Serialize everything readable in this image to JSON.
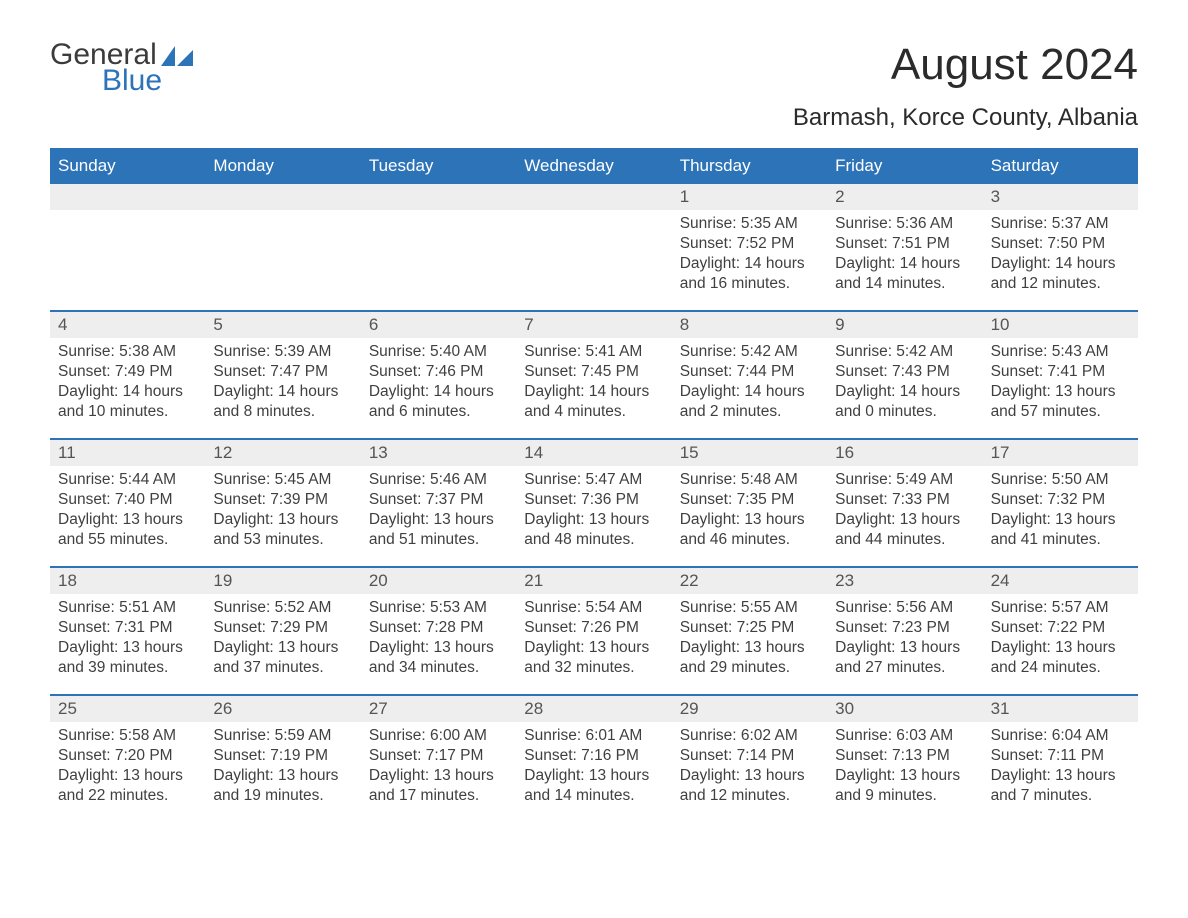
{
  "logo": {
    "general": "General",
    "blue": "Blue",
    "flag_color": "#2d73b8"
  },
  "title": "August 2024",
  "location": "Barmash, Korce County, Albania",
  "colors": {
    "header_bg": "#2d73b8",
    "header_text": "#ffffff",
    "daynum_bg": "#eeeeee",
    "body_text": "#404040",
    "rule": "#2d73b8",
    "page_bg": "#ffffff"
  },
  "typography": {
    "title_fontsize": 44,
    "location_fontsize": 24,
    "header_fontsize": 17,
    "daynum_fontsize": 17,
    "body_fontsize": 15.5,
    "font_family": "Arial"
  },
  "calendar": {
    "type": "table",
    "columns": [
      "Sunday",
      "Monday",
      "Tuesday",
      "Wednesday",
      "Thursday",
      "Friday",
      "Saturday"
    ],
    "weeks": [
      [
        null,
        null,
        null,
        null,
        {
          "day": "1",
          "sunrise": "Sunrise: 5:35 AM",
          "sunset": "Sunset: 7:52 PM",
          "daylight": "Daylight: 14 hours and 16 minutes."
        },
        {
          "day": "2",
          "sunrise": "Sunrise: 5:36 AM",
          "sunset": "Sunset: 7:51 PM",
          "daylight": "Daylight: 14 hours and 14 minutes."
        },
        {
          "day": "3",
          "sunrise": "Sunrise: 5:37 AM",
          "sunset": "Sunset: 7:50 PM",
          "daylight": "Daylight: 14 hours and 12 minutes."
        }
      ],
      [
        {
          "day": "4",
          "sunrise": "Sunrise: 5:38 AM",
          "sunset": "Sunset: 7:49 PM",
          "daylight": "Daylight: 14 hours and 10 minutes."
        },
        {
          "day": "5",
          "sunrise": "Sunrise: 5:39 AM",
          "sunset": "Sunset: 7:47 PM",
          "daylight": "Daylight: 14 hours and 8 minutes."
        },
        {
          "day": "6",
          "sunrise": "Sunrise: 5:40 AM",
          "sunset": "Sunset: 7:46 PM",
          "daylight": "Daylight: 14 hours and 6 minutes."
        },
        {
          "day": "7",
          "sunrise": "Sunrise: 5:41 AM",
          "sunset": "Sunset: 7:45 PM",
          "daylight": "Daylight: 14 hours and 4 minutes."
        },
        {
          "day": "8",
          "sunrise": "Sunrise: 5:42 AM",
          "sunset": "Sunset: 7:44 PM",
          "daylight": "Daylight: 14 hours and 2 minutes."
        },
        {
          "day": "9",
          "sunrise": "Sunrise: 5:42 AM",
          "sunset": "Sunset: 7:43 PM",
          "daylight": "Daylight: 14 hours and 0 minutes."
        },
        {
          "day": "10",
          "sunrise": "Sunrise: 5:43 AM",
          "sunset": "Sunset: 7:41 PM",
          "daylight": "Daylight: 13 hours and 57 minutes."
        }
      ],
      [
        {
          "day": "11",
          "sunrise": "Sunrise: 5:44 AM",
          "sunset": "Sunset: 7:40 PM",
          "daylight": "Daylight: 13 hours and 55 minutes."
        },
        {
          "day": "12",
          "sunrise": "Sunrise: 5:45 AM",
          "sunset": "Sunset: 7:39 PM",
          "daylight": "Daylight: 13 hours and 53 minutes."
        },
        {
          "day": "13",
          "sunrise": "Sunrise: 5:46 AM",
          "sunset": "Sunset: 7:37 PM",
          "daylight": "Daylight: 13 hours and 51 minutes."
        },
        {
          "day": "14",
          "sunrise": "Sunrise: 5:47 AM",
          "sunset": "Sunset: 7:36 PM",
          "daylight": "Daylight: 13 hours and 48 minutes."
        },
        {
          "day": "15",
          "sunrise": "Sunrise: 5:48 AM",
          "sunset": "Sunset: 7:35 PM",
          "daylight": "Daylight: 13 hours and 46 minutes."
        },
        {
          "day": "16",
          "sunrise": "Sunrise: 5:49 AM",
          "sunset": "Sunset: 7:33 PM",
          "daylight": "Daylight: 13 hours and 44 minutes."
        },
        {
          "day": "17",
          "sunrise": "Sunrise: 5:50 AM",
          "sunset": "Sunset: 7:32 PM",
          "daylight": "Daylight: 13 hours and 41 minutes."
        }
      ],
      [
        {
          "day": "18",
          "sunrise": "Sunrise: 5:51 AM",
          "sunset": "Sunset: 7:31 PM",
          "daylight": "Daylight: 13 hours and 39 minutes."
        },
        {
          "day": "19",
          "sunrise": "Sunrise: 5:52 AM",
          "sunset": "Sunset: 7:29 PM",
          "daylight": "Daylight: 13 hours and 37 minutes."
        },
        {
          "day": "20",
          "sunrise": "Sunrise: 5:53 AM",
          "sunset": "Sunset: 7:28 PM",
          "daylight": "Daylight: 13 hours and 34 minutes."
        },
        {
          "day": "21",
          "sunrise": "Sunrise: 5:54 AM",
          "sunset": "Sunset: 7:26 PM",
          "daylight": "Daylight: 13 hours and 32 minutes."
        },
        {
          "day": "22",
          "sunrise": "Sunrise: 5:55 AM",
          "sunset": "Sunset: 7:25 PM",
          "daylight": "Daylight: 13 hours and 29 minutes."
        },
        {
          "day": "23",
          "sunrise": "Sunrise: 5:56 AM",
          "sunset": "Sunset: 7:23 PM",
          "daylight": "Daylight: 13 hours and 27 minutes."
        },
        {
          "day": "24",
          "sunrise": "Sunrise: 5:57 AM",
          "sunset": "Sunset: 7:22 PM",
          "daylight": "Daylight: 13 hours and 24 minutes."
        }
      ],
      [
        {
          "day": "25",
          "sunrise": "Sunrise: 5:58 AM",
          "sunset": "Sunset: 7:20 PM",
          "daylight": "Daylight: 13 hours and 22 minutes."
        },
        {
          "day": "26",
          "sunrise": "Sunrise: 5:59 AM",
          "sunset": "Sunset: 7:19 PM",
          "daylight": "Daylight: 13 hours and 19 minutes."
        },
        {
          "day": "27",
          "sunrise": "Sunrise: 6:00 AM",
          "sunset": "Sunset: 7:17 PM",
          "daylight": "Daylight: 13 hours and 17 minutes."
        },
        {
          "day": "28",
          "sunrise": "Sunrise: 6:01 AM",
          "sunset": "Sunset: 7:16 PM",
          "daylight": "Daylight: 13 hours and 14 minutes."
        },
        {
          "day": "29",
          "sunrise": "Sunrise: 6:02 AM",
          "sunset": "Sunset: 7:14 PM",
          "daylight": "Daylight: 13 hours and 12 minutes."
        },
        {
          "day": "30",
          "sunrise": "Sunrise: 6:03 AM",
          "sunset": "Sunset: 7:13 PM",
          "daylight": "Daylight: 13 hours and 9 minutes."
        },
        {
          "day": "31",
          "sunrise": "Sunrise: 6:04 AM",
          "sunset": "Sunset: 7:11 PM",
          "daylight": "Daylight: 13 hours and 7 minutes."
        }
      ]
    ]
  }
}
